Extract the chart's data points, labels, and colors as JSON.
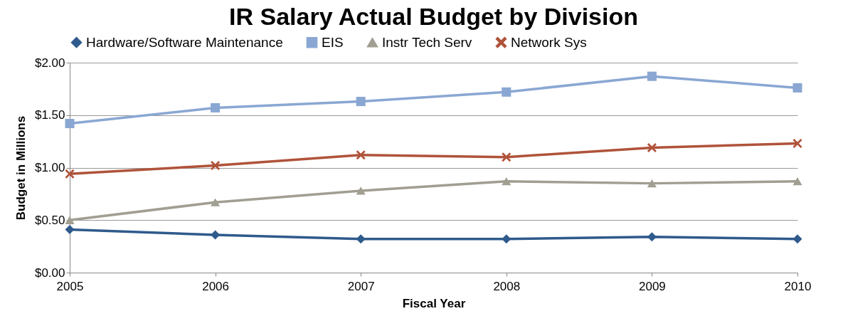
{
  "chart_data": {
    "type": "line",
    "title": "IR Salary Actual Budget by Division",
    "xlabel": "Fiscal Year",
    "ylabel": "Budget in Millions",
    "x": [
      2005,
      2006,
      2007,
      2008,
      2009,
      2010
    ],
    "series": [
      {
        "name": "Hardware/Software Maintenance",
        "color": "#2f5a8c",
        "marker": "diamond",
        "values": [
          0.41,
          0.36,
          0.32,
          0.32,
          0.34,
          0.32
        ]
      },
      {
        "name": "EIS",
        "color": "#8aa7d3",
        "marker": "square",
        "values": [
          1.42,
          1.57,
          1.63,
          1.72,
          1.87,
          1.76
        ]
      },
      {
        "name": "Instr Tech Serv",
        "color": "#a19e92",
        "marker": "triangle",
        "values": [
          0.5,
          0.67,
          0.78,
          0.87,
          0.85,
          0.87
        ]
      },
      {
        "name": "Network Sys",
        "color": "#b0533b",
        "marker": "cross",
        "values": [
          0.94,
          1.02,
          1.12,
          1.1,
          1.19,
          1.23
        ]
      }
    ],
    "xlim": [
      2005,
      2010
    ],
    "xticks": [
      2005,
      2006,
      2007,
      2008,
      2009,
      2010
    ],
    "ylim": [
      0,
      2
    ],
    "yticks": [
      {
        "value": 0,
        "label": "$0.00"
      },
      {
        "value": 0.5,
        "label": "$0.50"
      },
      {
        "value": 1,
        "label": "$1.00"
      },
      {
        "value": 1.5,
        "label": "$1.50"
      },
      {
        "value": 2,
        "label": "$2.00"
      }
    ],
    "grid": "y",
    "legend": "top",
    "line_style": "solid"
  }
}
